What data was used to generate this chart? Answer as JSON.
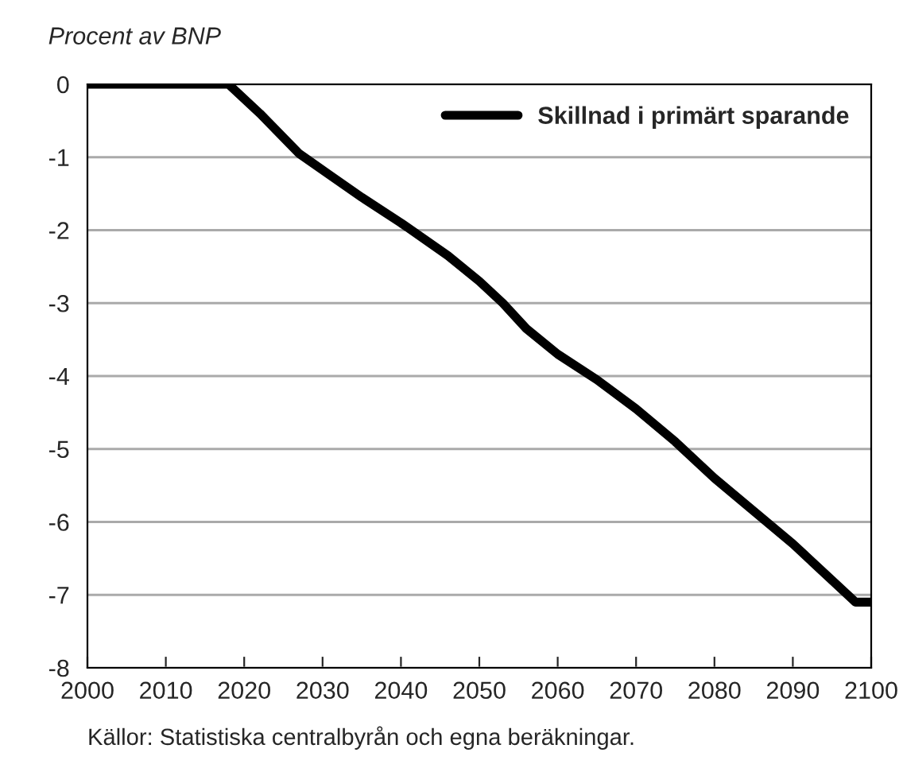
{
  "chart_data": {
    "type": "line",
    "ylabel": "Procent av BNP",
    "x": [
      2000,
      2018,
      2022,
      2027,
      2031,
      2035,
      2040,
      2046,
      2050,
      2053,
      2056,
      2060,
      2065,
      2070,
      2075,
      2080,
      2085,
      2090,
      2095,
      2098,
      2100
    ],
    "series": [
      {
        "name": "Skillnad i primärt sparande",
        "color": "#000000",
        "values": [
          0,
          0,
          -0.4,
          -0.95,
          -1.25,
          -1.55,
          -1.9,
          -2.35,
          -2.7,
          -3.0,
          -3.35,
          -3.7,
          -4.05,
          -4.45,
          -4.9,
          -5.4,
          -5.85,
          -6.3,
          -6.8,
          -7.1,
          -7.1
        ]
      }
    ],
    "xlim": [
      2000,
      2100
    ],
    "xticks": [
      2000,
      2010,
      2020,
      2030,
      2040,
      2050,
      2060,
      2070,
      2080,
      2090,
      2100
    ],
    "ylim": [
      -8,
      0
    ],
    "yticks": [
      -8,
      -7,
      -6,
      -5,
      -4,
      -3,
      -2,
      -1,
      0
    ],
    "grid": "y",
    "legend": "top right",
    "marker": "none",
    "line_style": "solid",
    "annotations": [
      "Källor: Statistiska centralbyrån och egna beräkningar."
    ]
  }
}
